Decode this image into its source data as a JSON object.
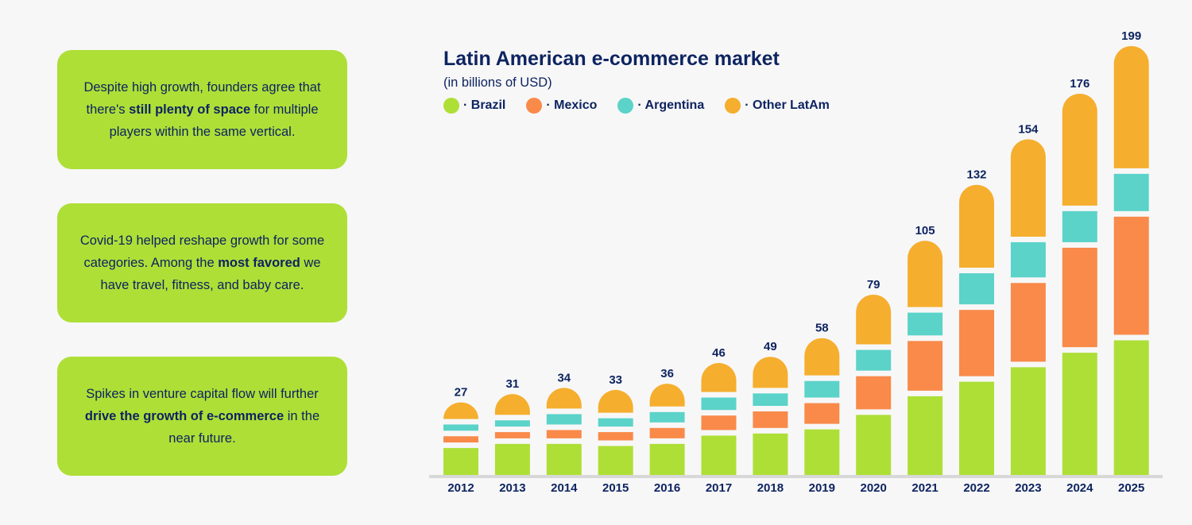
{
  "cards": [
    {
      "parts": [
        {
          "text": "Despite high growth, founders agree that there's ",
          "bold": false
        },
        {
          "text": "still plenty of space",
          "bold": true
        },
        {
          "text": " for multiple players within the same vertical.",
          "bold": false
        }
      ]
    },
    {
      "parts": [
        {
          "text": "Covid-19 helped reshape growth for some categories. Among the ",
          "bold": false
        },
        {
          "text": "most favored",
          "bold": true
        },
        {
          "text": " we have travel, fitness, and baby care.",
          "bold": false
        }
      ]
    },
    {
      "parts": [
        {
          "text": "Spikes in venture capital flow will further ",
          "bold": false
        },
        {
          "text": "drive the growth of e-commerce",
          "bold": true
        },
        {
          "text": " in the near future.",
          "bold": false
        }
      ]
    }
  ],
  "colors": {
    "background": "#f7f7f7",
    "card": "#aedf37",
    "text": "#0e2461",
    "axis": "#d8d8d8"
  },
  "chart_data": {
    "type": "bar",
    "stacked": true,
    "title": "Latin American e-commerce market",
    "subtitle": "(in billions of USD)",
    "xlabel": "",
    "ylabel": "",
    "ylim": [
      0,
      199
    ],
    "grid": false,
    "legend_position": "top-left",
    "categories": [
      "2012",
      "2013",
      "2014",
      "2015",
      "2016",
      "2017",
      "2018",
      "2019",
      "2020",
      "2021",
      "2022",
      "2023",
      "2024",
      "2025"
    ],
    "totals": [
      27,
      31,
      34,
      33,
      36,
      46,
      49,
      58,
      79,
      105,
      132,
      154,
      176,
      199
    ],
    "series": [
      {
        "name": "Brazil",
        "legend_label": "· Brazil",
        "color": "#aedf37",
        "values": [
          13,
          15,
          15,
          14,
          15,
          19,
          20,
          22,
          29,
          38,
          45,
          52,
          59,
          65
        ]
      },
      {
        "name": "Mexico",
        "legend_label": "· Mexico",
        "color": "#f98a4a",
        "values": [
          3,
          3,
          4,
          4,
          5,
          7,
          8,
          10,
          16,
          24,
          32,
          38,
          48,
          57
        ]
      },
      {
        "name": "Argentina",
        "legend_label": "· Argentina",
        "color": "#5bd3c9",
        "values": [
          3,
          3,
          5,
          4,
          5,
          6,
          6,
          8,
          10,
          11,
          15,
          17,
          15,
          18
        ]
      },
      {
        "name": "Other LatAm",
        "legend_label": "· Other LatAm",
        "color": "#f5ae2e",
        "values": [
          8,
          10,
          10,
          11,
          11,
          14,
          15,
          18,
          24,
          32,
          40,
          47,
          54,
          59
        ]
      }
    ]
  }
}
